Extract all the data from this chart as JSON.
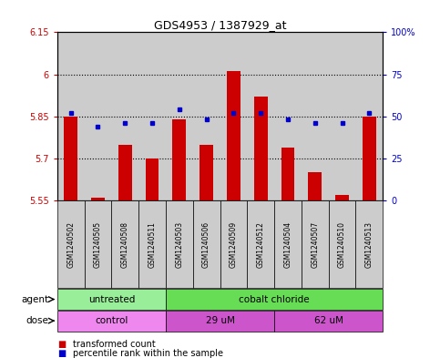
{
  "title": "GDS4953 / 1387929_at",
  "samples": [
    "GSM1240502",
    "GSM1240505",
    "GSM1240508",
    "GSM1240511",
    "GSM1240503",
    "GSM1240506",
    "GSM1240509",
    "GSM1240512",
    "GSM1240504",
    "GSM1240507",
    "GSM1240510",
    "GSM1240513"
  ],
  "red_values": [
    5.85,
    5.56,
    5.75,
    5.7,
    5.84,
    5.75,
    6.01,
    5.92,
    5.74,
    5.65,
    5.57,
    5.85
  ],
  "blue_values": [
    52,
    44,
    46,
    46,
    54,
    48,
    52,
    52,
    48,
    46,
    46,
    52
  ],
  "ylim_left": [
    5.55,
    6.15
  ],
  "ylim_right": [
    0,
    100
  ],
  "yticks_left": [
    5.55,
    5.7,
    5.85,
    6.0,
    6.15
  ],
  "yticks_right": [
    0,
    25,
    50,
    75,
    100
  ],
  "ytick_labels_left": [
    "5.55",
    "5.7",
    "5.85",
    "6",
    "6.15"
  ],
  "ytick_labels_right": [
    "0",
    "25",
    "50",
    "75",
    "100%"
  ],
  "hlines": [
    5.7,
    5.85,
    6.0
  ],
  "agent_groups": [
    {
      "label": "untreated",
      "start": 0,
      "end": 4,
      "color": "#99ee99"
    },
    {
      "label": "cobalt chloride",
      "start": 4,
      "end": 12,
      "color": "#66dd55"
    }
  ],
  "dose_groups": [
    {
      "label": "control",
      "start": 0,
      "end": 4,
      "color": "#ee88ee"
    },
    {
      "label": "29 uM",
      "start": 4,
      "end": 8,
      "color": "#cc55cc"
    },
    {
      "label": "62 uM",
      "start": 8,
      "end": 12,
      "color": "#cc55cc"
    }
  ],
  "bar_color": "#cc0000",
  "dot_color": "#0000cc",
  "col_bg_color": "#cccccc",
  "background_color": "#ffffff",
  "bar_width": 0.5,
  "bar_bottom": 5.55,
  "legend_red": "transformed count",
  "legend_blue": "percentile rank within the sample"
}
